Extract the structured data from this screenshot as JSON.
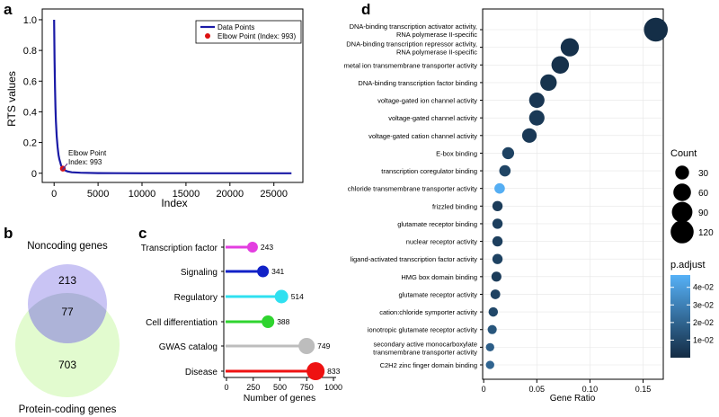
{
  "panels": {
    "a": "a",
    "b": "b",
    "c": "c",
    "d": "d"
  },
  "chart_data": [
    {
      "id": "a",
      "type": "line",
      "xlabel": "Index",
      "ylabel": "RTS values",
      "xticks": [
        0,
        5000,
        10000,
        15000,
        20000,
        25000
      ],
      "yticks": [
        0.0,
        0.2,
        0.4,
        0.6,
        0.8,
        1.0
      ],
      "ytick_labels": [
        "0",
        "0.2",
        "0.4",
        "0.6",
        "0.8",
        "1.0"
      ],
      "xlim": [
        -1350,
        28300
      ],
      "ylim": [
        -0.06,
        1.07
      ],
      "series_color": "#1a1aa6",
      "x": [
        0,
        50,
        100,
        150,
        200,
        300,
        400,
        500,
        600,
        700,
        800,
        993,
        1200,
        1500,
        2000,
        3000,
        5000,
        10000,
        20000,
        27000
      ],
      "y": [
        1.0,
        0.74,
        0.56,
        0.43,
        0.34,
        0.24,
        0.17,
        0.12,
        0.09,
        0.07,
        0.05,
        0.03,
        0.02,
        0.012,
        0.006,
        0.003,
        0.001,
        0.0,
        0.0,
        0.0
      ],
      "elbow": {
        "x": 993,
        "y": 0.03,
        "color": "#dd1111"
      },
      "annotation": {
        "line1": "Elbow Point",
        "line2": "Index: 993"
      },
      "legend": {
        "series": "Data Points",
        "elbow": "Elbow Point (Index: 993)"
      }
    },
    {
      "id": "b",
      "type": "venn",
      "sets": [
        {
          "name": "Noncoding genes",
          "only": 213,
          "color": "#c9c4f4"
        },
        {
          "name": "Protein-coding genes",
          "only": 703,
          "color": "#e2fbcf"
        }
      ],
      "intersection": 77,
      "overlap_color": "#adb3d8"
    },
    {
      "id": "c",
      "type": "lollipop",
      "xlabel": "Number of genes",
      "xticks": [
        0,
        250,
        500,
        750,
        1000
      ],
      "xlim": [
        -30,
        1050
      ],
      "categories": [
        "Transcription factor",
        "Signaling",
        "Regulatory",
        "Cell differentiation",
        "GWAS catalog",
        "Disease"
      ],
      "values": [
        243,
        341,
        514,
        388,
        749,
        833
      ],
      "colors": [
        "#e33ee0",
        "#1121c7",
        "#2fe0f0",
        "#2fd42f",
        "#bdbdbd",
        "#ee1111"
      ],
      "bubble_scale": [
        6,
        6.5,
        7.5,
        7,
        9,
        10
      ]
    },
    {
      "id": "d",
      "type": "scatter",
      "xlabel": "Gene Ratio",
      "xticks": [
        0.0,
        0.05,
        0.1,
        0.15
      ],
      "xtick_labels": [
        "0",
        "0.05",
        "0.10",
        "0.15"
      ],
      "xlim": [
        -0.001,
        0.169
      ],
      "categories": [
        [
          "DNA-binding transcription activator activity,",
          "RNA polymerase II-specific"
        ],
        [
          "DNA-binding transcription repressor activity,",
          "RNA polymerase II-specific"
        ],
        [
          "metal ion transmembrane transporter activity"
        ],
        [
          "DNA-binding transcription factor binding"
        ],
        [
          "voltage-gated ion channel activity"
        ],
        [
          "voltage-gated channel activity"
        ],
        [
          "voltage-gated cation channel activity"
        ],
        [
          "E-box binding"
        ],
        [
          "transcription coregulator binding"
        ],
        [
          "chloride transmembrane transporter activity"
        ],
        [
          "frizzled binding"
        ],
        [
          "glutamate receptor binding"
        ],
        [
          "nuclear receptor activity"
        ],
        [
          "ligand-activated transcription factor activity"
        ],
        [
          "HMG box domain binding"
        ],
        [
          "glutamate receptor activity"
        ],
        [
          "cation:chloride symporter activity"
        ],
        [
          "ionotropic glutamate receptor activity"
        ],
        [
          "secondary active monocarboxylate",
          "transmembrane transporter activity"
        ],
        [
          "C2H2 zinc finger domain binding"
        ]
      ],
      "gene_ratio": [
        0.162,
        0.081,
        0.072,
        0.061,
        0.05,
        0.05,
        0.043,
        0.023,
        0.02,
        0.015,
        0.013,
        0.013,
        0.013,
        0.013,
        0.012,
        0.011,
        0.009,
        0.008,
        0.006,
        0.006
      ],
      "count": [
        132,
        66,
        59,
        50,
        41,
        41,
        35,
        19,
        16,
        12,
        11,
        11,
        11,
        11,
        10,
        9,
        8,
        7,
        5,
        5
      ],
      "p_adjust": [
        0.001,
        0.002,
        0.002,
        0.003,
        0.004,
        0.005,
        0.005,
        0.008,
        0.009,
        0.046,
        0.006,
        0.007,
        0.007,
        0.008,
        0.006,
        0.008,
        0.01,
        0.015,
        0.018,
        0.02
      ],
      "size_legend": {
        "title": "Count",
        "values": [
          30,
          60,
          90,
          120
        ]
      },
      "color_legend": {
        "title": "p.adjust",
        "ticks": [
          0.01,
          0.02,
          0.03,
          0.04
        ],
        "tick_labels": [
          "1e-02",
          "2e-02",
          "3e-02",
          "4e-02"
        ],
        "range": [
          0.0,
          0.047
        ],
        "low_color": "#132b43",
        "high_color": "#56b1f7"
      }
    }
  ]
}
